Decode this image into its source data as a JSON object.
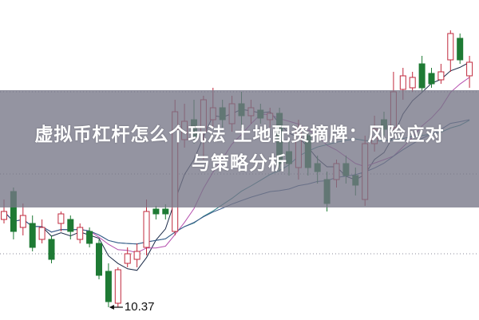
{
  "title": {
    "line1": "虚拟币杠杆怎么个玩法 土地配资摘牌：风险应对",
    "line2": "与策略分析"
  },
  "chart_data": {
    "type": "candlestick",
    "ylim": [
      10.21,
      14.22
    ],
    "grid": "dotted horizontal",
    "colors": {
      "up": "#c0283c",
      "down": "#1e7a34",
      "ma5": "#1b2a48",
      "ma10": "#b54fae",
      "ma20": "#2a7f86",
      "ma30": "#3a5a8a"
    },
    "moving_averages": [
      5,
      10,
      20,
      30
    ],
    "annotation": {
      "text": "10.37",
      "candle_index": 11
    },
    "candles": [
      [
        11.47,
        11.72,
        11.42,
        11.57
      ],
      [
        11.82,
        11.87,
        11.22,
        11.32
      ],
      [
        11.37,
        11.67,
        11.27,
        11.52
      ],
      [
        11.42,
        11.52,
        11.07,
        11.12
      ],
      [
        11.22,
        11.47,
        11.17,
        11.37
      ],
      [
        11.22,
        11.27,
        10.92,
        10.97
      ],
      [
        11.42,
        11.57,
        11.32,
        11.54
      ],
      [
        11.47,
        11.52,
        11.22,
        11.32
      ],
      [
        11.22,
        11.42,
        11.17,
        11.37
      ],
      [
        11.32,
        11.37,
        11.12,
        11.17
      ],
      [
        11.17,
        11.22,
        10.72,
        10.77
      ],
      [
        10.82,
        10.92,
        10.37,
        10.44
      ],
      [
        10.42,
        10.87,
        10.37,
        10.84
      ],
      [
        10.92,
        11.12,
        10.87,
        11.04
      ],
      [
        10.97,
        11.17,
        10.87,
        11.07
      ],
      [
        11.12,
        11.72,
        11.02,
        11.57
      ],
      [
        11.6,
        11.64,
        11.47,
        11.54
      ],
      [
        11.6,
        11.66,
        11.47,
        11.54
      ],
      [
        11.32,
        12.97,
        11.27,
        12.82
      ],
      [
        12.47,
        12.92,
        12.37,
        12.7
      ],
      [
        12.72,
        12.97,
        12.42,
        12.5
      ],
      [
        12.57,
        13.02,
        12.22,
        12.97
      ],
      [
        12.72,
        13.12,
        12.62,
        12.87
      ],
      [
        12.87,
        12.97,
        12.62,
        12.72
      ],
      [
        12.67,
        13.02,
        12.57,
        12.92
      ],
      [
        12.92,
        13.07,
        12.62,
        12.77
      ],
      [
        12.77,
        12.97,
        12.67,
        12.87
      ],
      [
        12.84,
        12.92,
        12.67,
        12.74
      ],
      [
        12.72,
        12.87,
        12.62,
        12.8
      ],
      [
        12.8,
        12.87,
        12.07,
        12.17
      ],
      [
        12.32,
        12.47,
        12.02,
        12.17
      ],
      [
        12.12,
        12.72,
        11.97,
        12.62
      ],
      [
        12.52,
        12.57,
        12.02,
        12.12
      ],
      [
        12.17,
        12.27,
        11.92,
        12.07
      ],
      [
        11.97,
        12.07,
        11.57,
        11.67
      ],
      [
        11.97,
        12.22,
        11.87,
        12.17
      ],
      [
        12.17,
        12.27,
        11.92,
        12.02
      ],
      [
        12.02,
        12.12,
        11.77,
        11.9
      ],
      [
        11.72,
        12.52,
        11.64,
        12.42
      ],
      [
        12.42,
        12.77,
        12.32,
        12.6
      ],
      [
        12.72,
        12.82,
        12.52,
        12.6
      ],
      [
        12.62,
        13.32,
        12.57,
        13.07
      ],
      [
        13.1,
        13.37,
        12.97,
        13.27
      ],
      [
        13.12,
        13.32,
        13.07,
        13.25
      ],
      [
        13.42,
        13.52,
        13.07,
        13.12
      ],
      [
        13.3,
        13.37,
        13.12,
        13.17
      ],
      [
        13.22,
        13.42,
        13.17,
        13.32
      ],
      [
        13.47,
        13.84,
        13.32,
        13.8
      ],
      [
        13.74,
        13.8,
        13.42,
        13.47
      ],
      [
        13.27,
        13.52,
        13.12,
        13.44
      ]
    ]
  }
}
